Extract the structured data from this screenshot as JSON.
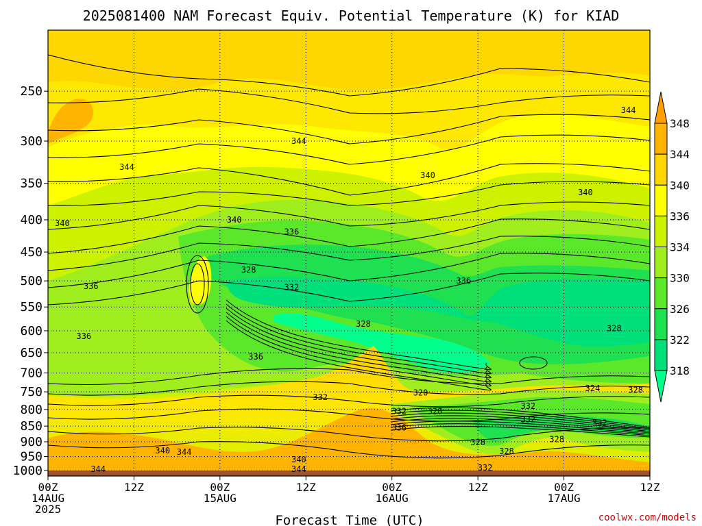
{
  "chart_data": {
    "type": "heatmap",
    "title": "2025081400 NAM Forecast Equiv. Potential Temperature (K) for KIAD",
    "xlabel": "Forecast Time (UTC)",
    "ylabel": "",
    "credit": "coolwx.com/models",
    "x_ticks": [
      {
        "hour": 0,
        "labels": [
          "00Z",
          "14AUG",
          "2025"
        ]
      },
      {
        "hour": 12,
        "labels": [
          "12Z"
        ]
      },
      {
        "hour": 24,
        "labels": [
          "00Z",
          "15AUG"
        ]
      },
      {
        "hour": 36,
        "labels": [
          "12Z"
        ]
      },
      {
        "hour": 48,
        "labels": [
          "00Z",
          "16AUG"
        ]
      },
      {
        "hour": 60,
        "labels": [
          "12Z"
        ]
      },
      {
        "hour": 72,
        "labels": [
          "00Z",
          "17AUG"
        ]
      },
      {
        "hour": 84,
        "labels": [
          "12Z"
        ]
      }
    ],
    "xlim": [
      0,
      84
    ],
    "y_ticks": [
      250,
      300,
      350,
      400,
      450,
      500,
      550,
      600,
      650,
      700,
      750,
      800,
      850,
      900,
      950,
      1000
    ],
    "ylim": [
      1020,
      200
    ],
    "y_scale": "log",
    "grid": true,
    "colorbar": {
      "levels": [
        318,
        322,
        326,
        330,
        334,
        336,
        340,
        344,
        348
      ],
      "colors": [
        "#00ff8c",
        "#00e07a",
        "#1ee050",
        "#5ce82a",
        "#a0ee1e",
        "#ccf200",
        "#ffff00",
        "#ffd700",
        "#ffb400",
        "#ffa000"
      ],
      "extend": "both"
    },
    "contour_interval": 2,
    "ground_color": "#a0522d",
    "contour_labels": [
      {
        "value": "344",
        "hour": 81,
        "p": 268
      },
      {
        "value": "344",
        "hour": 35,
        "p": 300
      },
      {
        "value": "344",
        "hour": 11,
        "p": 330
      },
      {
        "value": "340",
        "hour": 53,
        "p": 340
      },
      {
        "value": "340",
        "hour": 75,
        "p": 362
      },
      {
        "value": "340",
        "hour": 2,
        "p": 405
      },
      {
        "value": "340",
        "hour": 26,
        "p": 400
      },
      {
        "value": "336",
        "hour": 34,
        "p": 418
      },
      {
        "value": "336",
        "hour": 58,
        "p": 500
      },
      {
        "value": "336",
        "hour": 6,
        "p": 510
      },
      {
        "value": "332",
        "hour": 34,
        "p": 512
      },
      {
        "value": "328",
        "hour": 44,
        "p": 585
      },
      {
        "value": "328",
        "hour": 79,
        "p": 595
      },
      {
        "value": "324",
        "hour": 76,
        "p": 740
      },
      {
        "value": "328",
        "hour": 82,
        "p": 745
      },
      {
        "value": "320",
        "hour": 52,
        "p": 753
      },
      {
        "value": "332",
        "hour": 38,
        "p": 765
      },
      {
        "value": "332",
        "hour": 67,
        "p": 790
      },
      {
        "value": "332",
        "hour": 49,
        "p": 805
      },
      {
        "value": "328",
        "hour": 54,
        "p": 805
      },
      {
        "value": "332",
        "hour": 67,
        "p": 830
      },
      {
        "value": "332",
        "hour": 77,
        "p": 840
      },
      {
        "value": "336",
        "hour": 49,
        "p": 855
      },
      {
        "value": "328",
        "hour": 60,
        "p": 902
      },
      {
        "value": "328",
        "hour": 71,
        "p": 892
      },
      {
        "value": "340",
        "hour": 16,
        "p": 930
      },
      {
        "value": "344",
        "hour": 19,
        "p": 935
      },
      {
        "value": "328",
        "hour": 64,
        "p": 932
      },
      {
        "value": "340",
        "hour": 35,
        "p": 960
      },
      {
        "value": "332",
        "hour": 61,
        "p": 990
      },
      {
        "value": "344",
        "hour": 35,
        "p": 995
      },
      {
        "value": "336",
        "hour": 5,
        "p": 612
      },
      {
        "value": "336",
        "hour": 29,
        "p": 660
      },
      {
        "value": "328",
        "hour": 28,
        "p": 480
      },
      {
        "value": "344",
        "hour": 7,
        "p": 995
      }
    ]
  }
}
